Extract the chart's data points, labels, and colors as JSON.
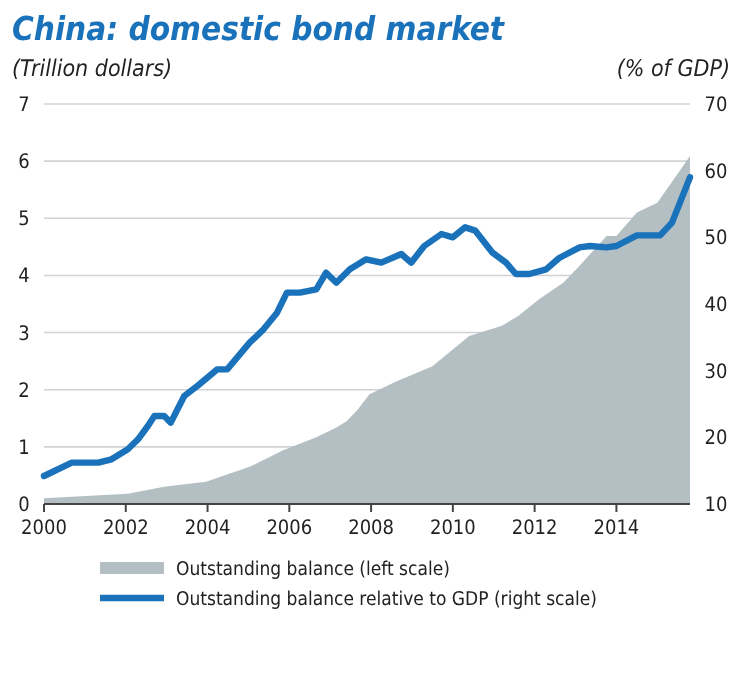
{
  "chart_data": {
    "type": "area",
    "title": "China: domestic bond market",
    "ylabel": "(Trillion dollars)",
    "y2label": "(% of GDP)",
    "xlim": [
      2000,
      2015.8
    ],
    "xticks": [
      2000,
      2002,
      2004,
      2006,
      2008,
      2010,
      2012,
      2014
    ],
    "ylim": [
      0,
      7
    ],
    "yticks": [
      0,
      1,
      2,
      3,
      4,
      5,
      6,
      7
    ],
    "y2lim": [
      10,
      70
    ],
    "y2ticks": [
      10,
      20,
      30,
      40,
      50,
      60,
      70
    ],
    "grid": "y",
    "legend": "bottom",
    "series": [
      {
        "name": "Outstanding balance (left scale)",
        "color": "#b4bfc3",
        "x": [
          2000,
          2002.05,
          2002.94,
          2003.96,
          2005.03,
          2005.85,
          2006.66,
          2007.15,
          2007.4,
          2007.67,
          2007.96,
          2008.6,
          2009.5,
          2010.4,
          2011.2,
          2011.6,
          2012.1,
          2012.7,
          2013.1,
          2013.76,
          2014,
          2014.5,
          2015,
          2015.4,
          2015.8
        ],
        "values": [
          0.1,
          0.18,
          0.3,
          0.39,
          0.65,
          0.94,
          1.17,
          1.34,
          1.45,
          1.65,
          1.92,
          2.14,
          2.41,
          2.94,
          3.12,
          3.29,
          3.58,
          3.87,
          4.17,
          4.69,
          4.69,
          5.1,
          5.27,
          5.68,
          6.09
        ]
      },
      {
        "name": "Outstanding balance relative to GDP (right scale)",
        "type": "line",
        "axis": "y2",
        "color": "#1a72bb",
        "x": [
          2000,
          2000.68,
          2001.33,
          2001.65,
          2002.05,
          2002.3,
          2002.54,
          2002.7,
          2002.94,
          2003.1,
          2003.43,
          2003.75,
          2004.24,
          2004.48,
          2005.03,
          2005.37,
          2005.7,
          2005.94,
          2006.26,
          2006.66,
          2006.9,
          2007.15,
          2007.48,
          2007.88,
          2008.25,
          2008.74,
          2008.98,
          2009.3,
          2009.72,
          2010,
          2010.3,
          2010.55,
          2010.97,
          2011.3,
          2011.54,
          2011.87,
          2012.28,
          2012.6,
          2013.1,
          2013.35,
          2013.76,
          2014,
          2014.5,
          2015.07,
          2015.36,
          2015.8
        ],
        "values": [
          14.2,
          16.2,
          16.2,
          16.7,
          18.2,
          19.7,
          21.7,
          23.2,
          23.2,
          22.2,
          26.2,
          27.7,
          30.2,
          30.2,
          34.2,
          36.2,
          38.7,
          41.7,
          41.7,
          42.2,
          44.7,
          43.2,
          45.2,
          46.7,
          46.2,
          47.5,
          46.2,
          48.7,
          50.5,
          50,
          51.5,
          51,
          47.7,
          46.2,
          44.5,
          44.5,
          45.2,
          46.9,
          48.5,
          48.7,
          48.5,
          48.7,
          50.3,
          50.3,
          52.2,
          59
        ]
      }
    ]
  }
}
